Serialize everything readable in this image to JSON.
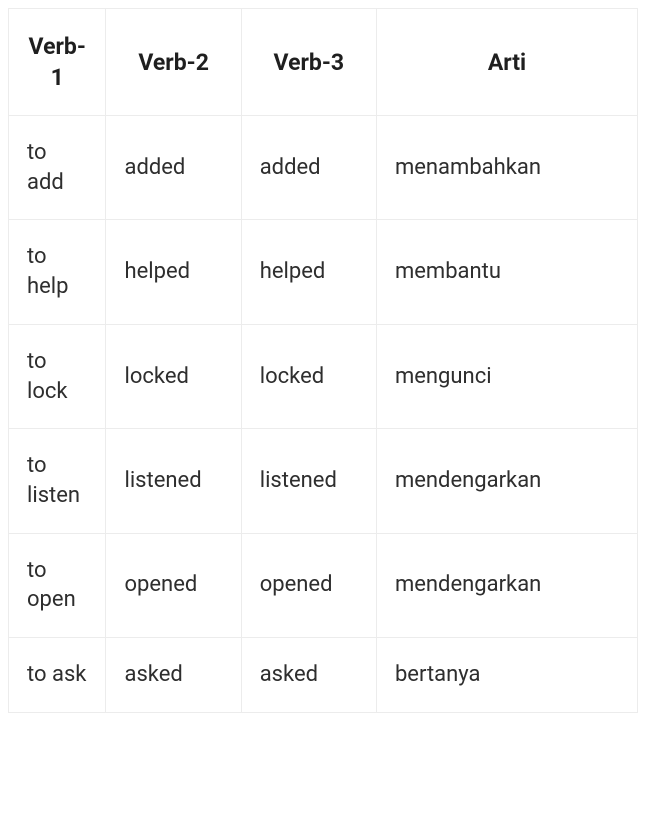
{
  "table": {
    "type": "table",
    "columns": [
      "Verb-1",
      "Verb-2",
      "Verb-3",
      "Arti"
    ],
    "column_widths_pct": [
      15.5,
      21.5,
      21.5,
      41.5
    ],
    "header_align": "center",
    "cell_align": "left",
    "header_fontsize": 23,
    "cell_fontsize": 22,
    "header_fontweight": 700,
    "cell_fontweight": 400,
    "border_color": "#ececec",
    "background_color": "#ffffff",
    "text_color": "#2a2a2a",
    "rows": [
      [
        "to add",
        "added",
        "added",
        "menambahkan"
      ],
      [
        "to help",
        "helped",
        "helped",
        "membantu"
      ],
      [
        "to lock",
        "locked",
        "locked",
        "mengunci"
      ],
      [
        "to listen",
        "listened",
        "listened",
        "mendengarkan"
      ],
      [
        "to open",
        "opened",
        "opened",
        "mendengarkan"
      ],
      [
        "to ask",
        "asked",
        "asked",
        "bertanya"
      ]
    ]
  }
}
